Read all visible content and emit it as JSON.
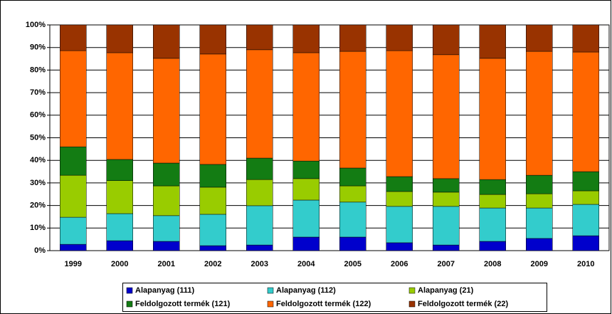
{
  "chart_data": {
    "type": "stacked_bar",
    "categories": [
      "1999",
      "2000",
      "2001",
      "2002",
      "2003",
      "2004",
      "2005",
      "2006",
      "2007",
      "2008",
      "2009",
      "2010"
    ],
    "series": [
      {
        "name": "Alapanyag (111)",
        "color": "#0000cc",
        "values": [
          2.8,
          4.4,
          4.1,
          2.2,
          2.5,
          6,
          6,
          3.5,
          2.5,
          4.1,
          5.4,
          6.6
        ]
      },
      {
        "name": "Alapanyag (112)",
        "color": "#33cccc",
        "values": [
          12,
          12,
          11.4,
          13.9,
          17.4,
          16.4,
          15.5,
          16.1,
          17.1,
          14.8,
          13.5,
          13.9
        ]
      },
      {
        "name": "Alapanyag (21)",
        "color": "#99cc00",
        "values": [
          18.6,
          14.6,
          13.2,
          12,
          11.6,
          9.5,
          7.2,
          6.6,
          6.3,
          6,
          6.3,
          6
        ]
      },
      {
        "name": "Feldolgozott termék (121)",
        "color": "#137c13",
        "values": [
          12.6,
          9.4,
          10.1,
          10.1,
          9.5,
          7.8,
          7.9,
          6.6,
          6,
          6.6,
          8.2,
          8.5
        ]
      },
      {
        "name": "Feldolgozott termék (122)",
        "color": "#ff6600",
        "values": [
          42.6,
          47.3,
          46.4,
          48.9,
          48,
          48,
          51.7,
          55.8,
          54.9,
          53.7,
          54.9,
          53
        ]
      },
      {
        "name": "Feldolgozott termék (22)",
        "color": "#993300",
        "values": [
          11.4,
          12.3,
          14.8,
          12.9,
          11,
          12.3,
          11.7,
          11.4,
          13.2,
          14.8,
          11.7,
          12
        ]
      }
    ],
    "ylim": [
      0,
      100
    ],
    "yticks": [
      {
        "value": 0,
        "label": "0%"
      },
      {
        "value": 10,
        "label": "10%"
      },
      {
        "value": 20,
        "label": "20%"
      },
      {
        "value": 30,
        "label": "30%"
      },
      {
        "value": 40,
        "label": "40%"
      },
      {
        "value": 50,
        "label": "50%"
      },
      {
        "value": 60,
        "label": "60%"
      },
      {
        "value": 70,
        "label": "70%"
      },
      {
        "value": 80,
        "label": "80%"
      },
      {
        "value": 90,
        "label": "90%"
      },
      {
        "value": 100,
        "label": "100%"
      }
    ],
    "grid": true
  }
}
